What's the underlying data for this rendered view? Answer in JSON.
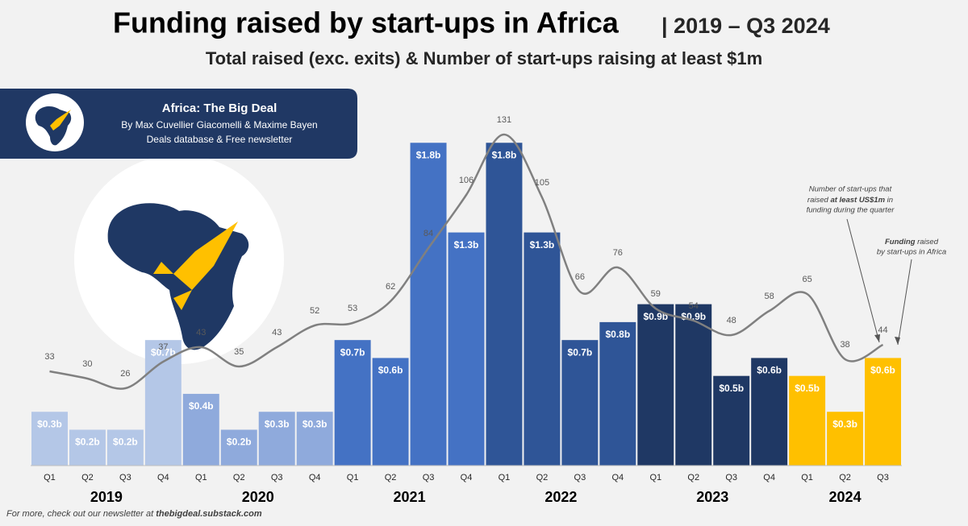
{
  "header": {
    "title": "Funding raised by start-ups in Africa",
    "title_suffix": "| 2019 – Q3 2024",
    "subtitle": "Total raised (exc. exits) & Number of start-ups raising at least $1m"
  },
  "banner": {
    "title": "Africa: The Big Deal",
    "authors": "By Max Cuvellier Giacomelli & Maxime Bayen",
    "tagline": "Deals database & Free newsletter"
  },
  "chart_data": {
    "type": "bar-line",
    "ylim": [
      0,
      1.9
    ],
    "y2lim": [
      -6,
      135
    ],
    "line_color": "#808080",
    "years": [
      {
        "label": "2019",
        "color": "#b4c7e7",
        "quarters": [
          "Q1",
          "Q2",
          "Q3",
          "Q4"
        ],
        "funding": [
          0.3,
          0.2,
          0.2,
          0.7
        ],
        "funding_labels": [
          "$0.3b",
          "$0.2b",
          "$0.2b",
          "$0.7b"
        ],
        "startups": [
          33,
          30,
          26,
          37
        ]
      },
      {
        "label": "2020",
        "color": "#8faadc",
        "quarters": [
          "Q1",
          "Q2",
          "Q3",
          "Q4"
        ],
        "funding": [
          0.4,
          0.2,
          0.3,
          0.3
        ],
        "funding_labels": [
          "$0.4b",
          "$0.2b",
          "$0.3b",
          "$0.3b"
        ],
        "startups": [
          43,
          35,
          43,
          52
        ]
      },
      {
        "label": "2021",
        "color": "#4472c4",
        "quarters": [
          "Q1",
          "Q2",
          "Q3",
          "Q4"
        ],
        "funding": [
          0.7,
          0.6,
          1.8,
          1.3
        ],
        "funding_labels": [
          "$0.7b",
          "$0.6b",
          "$1.8b",
          "$1.3b"
        ],
        "startups": [
          53,
          62,
          84,
          106
        ]
      },
      {
        "label": "2022",
        "color": "#2f5597",
        "quarters": [
          "Q1",
          "Q2",
          "Q3",
          "Q4"
        ],
        "funding": [
          1.8,
          1.3,
          0.7,
          0.8
        ],
        "funding_labels": [
          "$1.8b",
          "$1.3b",
          "$0.7b",
          "$0.8b"
        ],
        "startups": [
          131,
          105,
          66,
          76
        ]
      },
      {
        "label": "2023",
        "color": "#1f3864",
        "quarters": [
          "Q1",
          "Q2",
          "Q3",
          "Q4"
        ],
        "funding": [
          0.9,
          0.9,
          0.5,
          0.6
        ],
        "funding_labels": [
          "$0.9b",
          "$0.9b",
          "$0.5b",
          "$0.6b"
        ],
        "startups": [
          59,
          54,
          48,
          58
        ]
      },
      {
        "label": "2024",
        "color": "#ffc000",
        "quarters": [
          "Q1",
          "Q2",
          "Q3"
        ],
        "funding": [
          0.5,
          0.3,
          0.6
        ],
        "funding_labels": [
          "$0.5b",
          "$0.3b",
          "$0.6b"
        ],
        "startups": [
          65,
          38,
          44
        ]
      }
    ],
    "annotations": {
      "startups": [
        "Number of start-ups that",
        "raised ",
        "at least US$1m",
        " in",
        "funding during the quarter"
      ],
      "funding": [
        "Funding",
        " raised",
        "by start-ups in Africa"
      ]
    }
  },
  "footer": {
    "text": "For more, check out our newsletter at ",
    "link": "thebigdeal.substack.com"
  }
}
